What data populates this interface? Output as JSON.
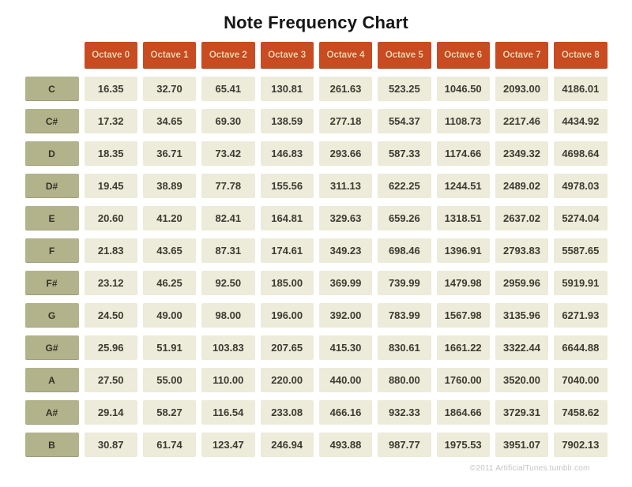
{
  "title": "Note Frequency Chart",
  "footer": {
    "credit": "©2011 ArtificialTunes.tumblr.com"
  },
  "colors": {
    "octave_header_bg": "#c94b22",
    "octave_header_text": "#f5d4ab",
    "note_label_bg": "#b3b38b",
    "note_label_text": "#32322a",
    "cell_bg": "#edebd9",
    "cell_text": "#3b3b32",
    "page_bg": "#ffffff",
    "credit_text": "#c5c4c2"
  },
  "chart_data": {
    "type": "table",
    "title": "Note Frequency Chart",
    "columns": [
      "Octave 0",
      "Octave 1",
      "Octave 2",
      "Octave 3",
      "Octave 4",
      "Octave 5",
      "Octave 6",
      "Octave 7",
      "Octave 8"
    ],
    "rows": [
      {
        "note": "C",
        "values": [
          "16.35",
          "32.70",
          "65.41",
          "130.81",
          "261.63",
          "523.25",
          "1046.50",
          "2093.00",
          "4186.01"
        ]
      },
      {
        "note": "C#",
        "values": [
          "17.32",
          "34.65",
          "69.30",
          "138.59",
          "277.18",
          "554.37",
          "1108.73",
          "2217.46",
          "4434.92"
        ]
      },
      {
        "note": "D",
        "values": [
          "18.35",
          "36.71",
          "73.42",
          "146.83",
          "293.66",
          "587.33",
          "1174.66",
          "2349.32",
          "4698.64"
        ]
      },
      {
        "note": "D#",
        "values": [
          "19.45",
          "38.89",
          "77.78",
          "155.56",
          "311.13",
          "622.25",
          "1244.51",
          "2489.02",
          "4978.03"
        ]
      },
      {
        "note": "E",
        "values": [
          "20.60",
          "41.20",
          "82.41",
          "164.81",
          "329.63",
          "659.26",
          "1318.51",
          "2637.02",
          "5274.04"
        ]
      },
      {
        "note": "F",
        "values": [
          "21.83",
          "43.65",
          "87.31",
          "174.61",
          "349.23",
          "698.46",
          "1396.91",
          "2793.83",
          "5587.65"
        ]
      },
      {
        "note": "F#",
        "values": [
          "23.12",
          "46.25",
          "92.50",
          "185.00",
          "369.99",
          "739.99",
          "1479.98",
          "2959.96",
          "5919.91"
        ]
      },
      {
        "note": "G",
        "values": [
          "24.50",
          "49.00",
          "98.00",
          "196.00",
          "392.00",
          "783.99",
          "1567.98",
          "3135.96",
          "6271.93"
        ]
      },
      {
        "note": "G#",
        "values": [
          "25.96",
          "51.91",
          "103.83",
          "207.65",
          "415.30",
          "830.61",
          "1661.22",
          "3322.44",
          "6644.88"
        ]
      },
      {
        "note": "A",
        "values": [
          "27.50",
          "55.00",
          "110.00",
          "220.00",
          "440.00",
          "880.00",
          "1760.00",
          "3520.00",
          "7040.00"
        ]
      },
      {
        "note": "A#",
        "values": [
          "29.14",
          "58.27",
          "116.54",
          "233.08",
          "466.16",
          "932.33",
          "1864.66",
          "3729.31",
          "7458.62"
        ]
      },
      {
        "note": "B",
        "values": [
          "30.87",
          "61.74",
          "123.47",
          "246.94",
          "493.88",
          "987.77",
          "1975.53",
          "3951.07",
          "7902.13"
        ]
      }
    ]
  }
}
